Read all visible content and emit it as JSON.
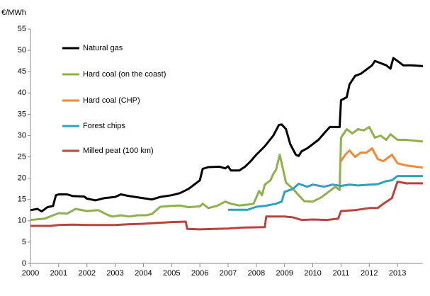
{
  "chart_data": {
    "type": "line",
    "y_label": "€/MWh",
    "xlim": [
      2000,
      2013.9
    ],
    "xticks": [
      2000,
      2001,
      2002,
      2003,
      2004,
      2005,
      2006,
      2007,
      2008,
      2009,
      2010,
      2011,
      2012,
      2013
    ],
    "ylim": [
      0,
      55
    ],
    "yticks": [
      0,
      5,
      10,
      15,
      20,
      25,
      30,
      35,
      40,
      45,
      50,
      55
    ],
    "grid": false,
    "legend": "upper left",
    "series": [
      {
        "name": "Natural gas",
        "color": "#000000",
        "x": [
          2000,
          2000.25,
          2000.4,
          2000.6,
          2000.8,
          2000.9,
          2001,
          2001.3,
          2001.5,
          2001.9,
          2002,
          2002.3,
          2002.6,
          2003,
          2003.2,
          2003.5,
          2004,
          2004.3,
          2004.6,
          2005,
          2005.3,
          2005.6,
          2005.9,
          2006,
          2006.1,
          2006.3,
          2006.7,
          2006.9,
          2007,
          2007.1,
          2007.4,
          2007.6,
          2007.8,
          2008,
          2008.3,
          2008.6,
          2008.8,
          2008.9,
          2009.05,
          2009.2,
          2009.4,
          2009.5,
          2009.6,
          2009.8,
          2010,
          2010.2,
          2010.4,
          2010.6,
          2010.8,
          2010.95,
          2011,
          2011.2,
          2011.3,
          2011.5,
          2011.7,
          2011.9,
          2012.1,
          2012.2,
          2012.4,
          2012.6,
          2012.75,
          2012.85,
          2013,
          2013.2,
          2013.5,
          2013.9
        ],
        "values": [
          12.5,
          12.8,
          12.2,
          13.2,
          13.5,
          16,
          16.2,
          16.2,
          15.8,
          15.7,
          15.2,
          14.8,
          15.3,
          15.6,
          16.2,
          15.8,
          15.3,
          15,
          15.6,
          16,
          16.5,
          17.5,
          19,
          19.5,
          22.2,
          22.6,
          22.7,
          22.3,
          22.8,
          21.8,
          21.8,
          22.7,
          24,
          25.5,
          27.5,
          30,
          32.5,
          32.6,
          31.5,
          28,
          25.5,
          25.2,
          26.3,
          27,
          28,
          29,
          30.5,
          32,
          32,
          32,
          38.3,
          39,
          42,
          44,
          44.5,
          45.5,
          46.5,
          47.5,
          47,
          46.5,
          45.7,
          48.2,
          47.5,
          46.5,
          46.5,
          46.3
        ]
      },
      {
        "name": "Hard coal (on the coast)",
        "color": "#8fb04e",
        "x": [
          2000,
          2000.5,
          2001,
          2001.3,
          2001.6,
          2002,
          2002.4,
          2002.7,
          2002.9,
          2003.2,
          2003.5,
          2003.8,
          2004.1,
          2004.3,
          2004.6,
          2005,
          2005.3,
          2005.6,
          2006,
          2006.1,
          2006.3,
          2006.6,
          2006.9,
          2007.1,
          2007.4,
          2007.7,
          2007.9,
          2008.1,
          2008.2,
          2008.3,
          2008.5,
          2008.6,
          2008.7,
          2008.83,
          2008.95,
          2009.05,
          2009.3,
          2009.5,
          2009.7,
          2010,
          2010.3,
          2010.5,
          2010.8,
          2010.95,
          2011,
          2011.2,
          2011.4,
          2011.6,
          2011.8,
          2012,
          2012.2,
          2012.4,
          2012.6,
          2012.75,
          2013,
          2013.3,
          2013.9
        ],
        "values": [
          10.2,
          10.5,
          11.8,
          11.7,
          12.8,
          12.3,
          12.5,
          11.5,
          11,
          11.3,
          11,
          11.3,
          11.3,
          11.6,
          13.3,
          13.5,
          13.6,
          13.2,
          13.4,
          14,
          13,
          13.5,
          14.5,
          14,
          13.6,
          13.8,
          14,
          17,
          16,
          18.5,
          19.5,
          21,
          22,
          25.5,
          22,
          19,
          17.5,
          16,
          14.6,
          14.5,
          15.5,
          16.5,
          18,
          17.2,
          29.5,
          31.5,
          30.5,
          31.5,
          31.2,
          32,
          29.5,
          30,
          29,
          30.3,
          29,
          29,
          28.6
        ]
      },
      {
        "name": "Hard coal (CHP)",
        "color": "#f08a3a",
        "x": [
          2011,
          2011.15,
          2011.3,
          2011.5,
          2011.7,
          2011.9,
          2012.1,
          2012.3,
          2012.5,
          2012.8,
          2013,
          2013.3,
          2013.9
        ],
        "values": [
          24,
          25.5,
          26.5,
          25,
          26,
          26,
          27,
          24.5,
          24,
          25.5,
          23.5,
          23,
          22.5
        ]
      },
      {
        "name": "Forest chips",
        "color": "#31a0b8",
        "x": [
          2007,
          2007.7,
          2008,
          2008.3,
          2008.7,
          2008.9,
          2009,
          2009.3,
          2009.5,
          2009.8,
          2010,
          2010.4,
          2010.7,
          2011,
          2011.3,
          2011.6,
          2012,
          2012.3,
          2012.6,
          2012.8,
          2013,
          2013.9
        ],
        "values": [
          12.6,
          12.6,
          13.3,
          13.5,
          14,
          14.5,
          16.8,
          17.5,
          18.7,
          18,
          18.5,
          18,
          18.5,
          18.2,
          18.5,
          18.3,
          18.5,
          18.6,
          19.3,
          19.5,
          20.5,
          20.5
        ]
      },
      {
        "name": "Milled peat (100 km)",
        "color": "#b9433f",
        "x": [
          2000,
          2000.7,
          2001,
          2001.5,
          2002,
          2003,
          2003.5,
          2004,
          2004.5,
          2005,
          2005.5,
          2005.55,
          2006,
          2006.5,
          2007,
          2007.5,
          2008.3,
          2008.35,
          2009,
          2009.3,
          2009.6,
          2010,
          2010.5,
          2010.9,
          2011,
          2011.5,
          2012,
          2012.3,
          2012.5,
          2012.8,
          2013,
          2013.3,
          2013.9
        ],
        "values": [
          8.8,
          8.8,
          9,
          9.1,
          9,
          9,
          9.2,
          9.3,
          9.5,
          9.7,
          9.8,
          8.1,
          8,
          8.1,
          8.2,
          8.4,
          8.5,
          11,
          11,
          10.8,
          10.2,
          10.3,
          10.2,
          10.5,
          12.3,
          12.5,
          13,
          13,
          14,
          15.3,
          19.2,
          18.8,
          18.8
        ]
      }
    ]
  }
}
